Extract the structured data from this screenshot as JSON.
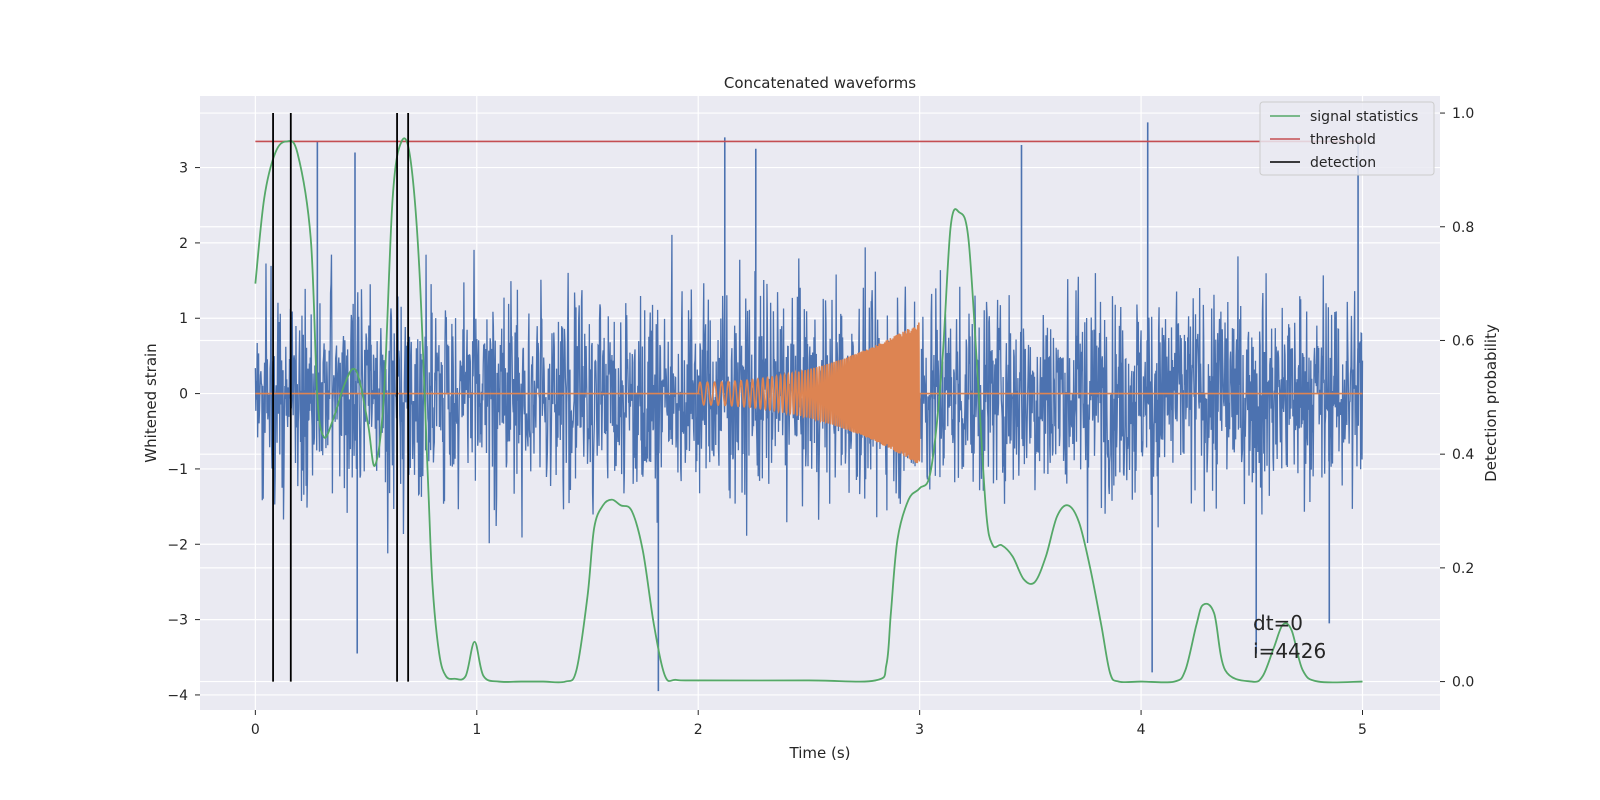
{
  "chart_data": {
    "type": "line",
    "title": "Concatenated waveforms",
    "xlabel": "Time (s)",
    "ylabel": "Whitened strain",
    "y2label": "Detection probability",
    "xlim": [
      -0.25,
      5.35
    ],
    "ylim": [
      -4.2,
      3.95
    ],
    "y2lim": [
      -0.05,
      1.03
    ],
    "x_ticks": [
      0,
      1,
      2,
      3,
      4,
      5
    ],
    "y_ticks": [
      -4,
      -3,
      -2,
      -1,
      0,
      1,
      2,
      3
    ],
    "y2_ticks": [
      0.0,
      0.2,
      0.4,
      0.6,
      0.8,
      1.0
    ],
    "x_tick_labels": [
      "0",
      "1",
      "2",
      "3",
      "4",
      "5"
    ],
    "y_tick_labels": [
      "−4",
      "−3",
      "−2",
      "−1",
      "0",
      "1",
      "2",
      "3"
    ],
    "y2_tick_labels": [
      "0.0",
      "0.2",
      "0.4",
      "0.6",
      "0.8",
      "1.0"
    ],
    "grid": true,
    "legend_position": "top-right",
    "colors": {
      "background": "#eaeaf2",
      "grid": "#ffffff",
      "noise": "#4c72b0",
      "chirp": "#dd8452",
      "statistic": "#55a868",
      "threshold": "#c44e52",
      "detection": "#000000"
    },
    "series": [
      {
        "name": "",
        "kind": "noise",
        "axis": "left",
        "x_range": [
          0,
          5
        ],
        "amplitude_envelope": [
          -2.0,
          1.8
        ],
        "notable_peaks": [
          {
            "x": 0.28,
            "y": 3.35
          },
          {
            "x": 0.45,
            "y": 3.2
          },
          {
            "x": 2.12,
            "y": 3.4
          },
          {
            "x": 2.26,
            "y": 3.25
          },
          {
            "x": 3.46,
            "y": 3.3
          },
          {
            "x": 4.03,
            "y": 3.6
          },
          {
            "x": 4.98,
            "y": 3.35
          },
          {
            "x": 0.46,
            "y": -3.45
          },
          {
            "x": 1.82,
            "y": -3.95
          },
          {
            "x": 4.05,
            "y": -3.7
          },
          {
            "x": 4.52,
            "y": -3.45
          },
          {
            "x": 4.85,
            "y": -3.05
          }
        ]
      },
      {
        "name": "",
        "kind": "chirp",
        "axis": "left",
        "x_range": [
          0,
          5
        ],
        "chirp_start": 2.0,
        "chirp_end": 3.0,
        "amplitude_start": 0.15,
        "amplitude_end": 0.95
      },
      {
        "name": "signal statistics",
        "axis": "right",
        "x": [
          0,
          0.04,
          0.09,
          0.14,
          0.19,
          0.25,
          0.28,
          0.31,
          0.35,
          0.4,
          0.44,
          0.47,
          0.51,
          0.54,
          0.58,
          0.62,
          0.66,
          0.7,
          0.74,
          0.78,
          0.8,
          0.83,
          0.86,
          0.9,
          0.95,
          0.99,
          1.03,
          1.1,
          1.2,
          1.3,
          1.4,
          1.45,
          1.5,
          1.53,
          1.57,
          1.61,
          1.65,
          1.7,
          1.75,
          1.8,
          1.85,
          1.9,
          2.0,
          2.5,
          2.8,
          2.85,
          2.87,
          2.9,
          2.95,
          3.0,
          3.05,
          3.1,
          3.14,
          3.18,
          3.22,
          3.26,
          3.3,
          3.33,
          3.37,
          3.42,
          3.47,
          3.52,
          3.57,
          3.62,
          3.67,
          3.72,
          3.77,
          3.82,
          3.86,
          3.9,
          4.0,
          4.15,
          4.2,
          4.25,
          4.28,
          4.33,
          4.38,
          4.5,
          4.55,
          4.6,
          4.64,
          4.68,
          4.73,
          4.8,
          5.0
        ],
        "values": [
          0.7,
          0.85,
          0.93,
          0.95,
          0.93,
          0.78,
          0.5,
          0.43,
          0.46,
          0.52,
          0.55,
          0.53,
          0.45,
          0.38,
          0.5,
          0.85,
          0.95,
          0.92,
          0.73,
          0.35,
          0.17,
          0.05,
          0.01,
          0.005,
          0.01,
          0.07,
          0.01,
          0.0,
          0.0,
          0.0,
          0.0,
          0.02,
          0.15,
          0.27,
          0.31,
          0.32,
          0.31,
          0.3,
          0.23,
          0.1,
          0.01,
          0.003,
          0.002,
          0.002,
          0.002,
          0.03,
          0.12,
          0.25,
          0.32,
          0.34,
          0.37,
          0.55,
          0.8,
          0.825,
          0.78,
          0.55,
          0.3,
          0.24,
          0.24,
          0.22,
          0.18,
          0.175,
          0.22,
          0.29,
          0.31,
          0.28,
          0.2,
          0.1,
          0.015,
          0.0,
          0.0,
          0.0,
          0.02,
          0.1,
          0.135,
          0.12,
          0.02,
          0.0,
          0.01,
          0.06,
          0.1,
          0.09,
          0.02,
          0.0,
          0.0
        ]
      },
      {
        "name": "threshold",
        "axis": "right",
        "x": [
          0,
          5.02
        ],
        "values": [
          0.95,
          0.95
        ]
      },
      {
        "name": "detection",
        "axis": "right",
        "kind": "vlines",
        "x": [
          0.08,
          0.16,
          0.64,
          0.69
        ],
        "ymin": 0.0,
        "ymax": 1.0
      }
    ],
    "annotations": [
      "dt=0",
      "i=4426"
    ]
  }
}
